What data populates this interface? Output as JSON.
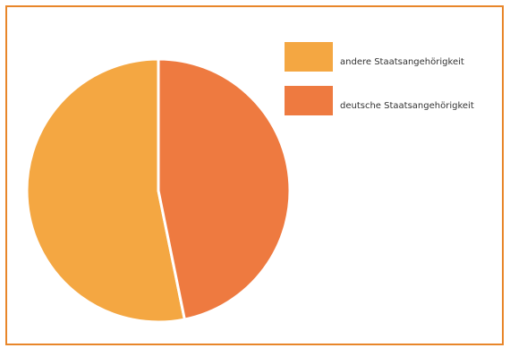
{
  "chart_data": {
    "type": "pie",
    "title": "",
    "slices": [
      {
        "label": "andere Staatsangehörigkeit",
        "value": 53.2,
        "color": "#f4a742"
      },
      {
        "label": "deutsche Staatsangehörigkeit",
        "value": 46.8,
        "color": "#ee7a40"
      }
    ],
    "legend": {
      "placement": "top-right"
    },
    "slice_border": "#ffffff",
    "frame_color": "#e8862a"
  }
}
